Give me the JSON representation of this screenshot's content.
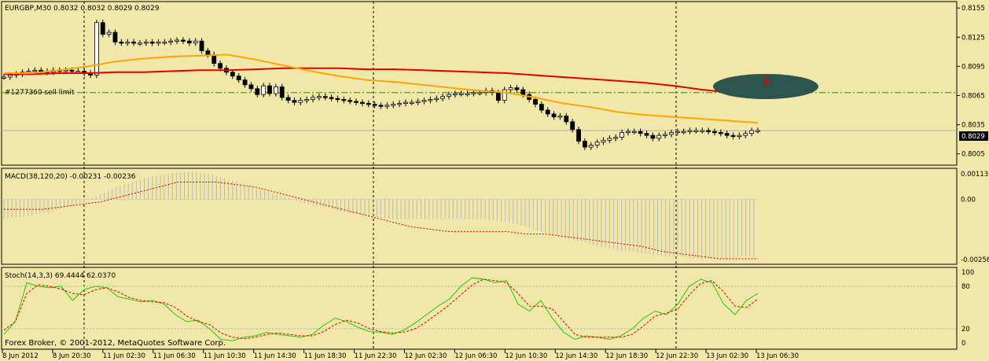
{
  "header": {
    "symbol_label": "EURGBP,M30  0.8032 0.8032 0.8029 0.8029",
    "order_label": "#1277360 sell limit",
    "macd_label": "MACD(38,120,20) -0.00231 -0.00236",
    "stoch_label": "Stoch(14,3,3) 69.4444 62.0370",
    "copyright": "Forex Broker, © 2001-2012, MetaQuotes Software Corp.",
    "current_price": "0.8029",
    "alert_marker": "8"
  },
  "colors": {
    "background": "#f0e7a8",
    "ma_slow": "#e00000",
    "ma_fast": "#ffa500",
    "stoch_main": "#22cc00",
    "stoch_signal": "#e00000",
    "macd_hist": "#b8b8b8",
    "alert_ellipse": "#2e5450"
  },
  "chart_data": [
    {
      "type": "candlestick",
      "title": "EURGBP,M30",
      "ylim": [
        0.7995,
        0.816
      ],
      "y_ticks": [
        "0.8155",
        "0.8125",
        "0.8095",
        "0.8065",
        "0.8035",
        "0.8005"
      ],
      "x_ticks": [
        "8 Jun 2012",
        "8 Jun 20:30",
        "11 Jun 02:30",
        "11 Jun 06:30",
        "11 Jun 10:30",
        "11 Jun 14:30",
        "11 Jun 18:30",
        "11 Jun 22:30",
        "12 Jun 02:30",
        "12 Jun 06:30",
        "12 Jun 10:30",
        "12 Jun 14:30",
        "12 Jun 18:30",
        "12 Jun 22:30",
        "13 Jun 02:30",
        "13 Jun 06:30"
      ],
      "close_series": [
        0.8084,
        0.8086,
        0.8087,
        0.8089,
        0.809,
        0.8091,
        0.809,
        0.8089,
        0.8091,
        0.809,
        0.8091,
        0.809,
        0.809,
        0.8088,
        0.8086,
        0.814,
        0.8128,
        0.813,
        0.812,
        0.8119,
        0.812,
        0.8119,
        0.8119,
        0.812,
        0.8119,
        0.812,
        0.812,
        0.8121,
        0.8122,
        0.8121,
        0.8119,
        0.8121,
        0.8111,
        0.8107,
        0.8098,
        0.8093,
        0.8089,
        0.8085,
        0.8081,
        0.8076,
        0.8072,
        0.8066,
        0.8075,
        0.8067,
        0.8074,
        0.8063,
        0.806,
        0.8058,
        0.806,
        0.8061,
        0.8063,
        0.8064,
        0.8063,
        0.8062,
        0.8061,
        0.806,
        0.8059,
        0.8058,
        0.8057,
        0.8056,
        0.8055,
        0.8054,
        0.8055,
        0.8056,
        0.8057,
        0.8058,
        0.8058,
        0.8059,
        0.806,
        0.8061,
        0.8062,
        0.8064,
        0.8066,
        0.8067,
        0.8067,
        0.8067,
        0.8068,
        0.8068,
        0.807,
        0.8068,
        0.806,
        0.8071,
        0.8073,
        0.8071,
        0.8066,
        0.8061,
        0.8056,
        0.805,
        0.8046,
        0.8043,
        0.8044,
        0.8038,
        0.803,
        0.8018,
        0.8012,
        0.8014,
        0.8017,
        0.8019,
        0.8021,
        0.8022,
        0.8027,
        0.8028,
        0.8028,
        0.8026,
        0.8024,
        0.8021,
        0.8024,
        0.8025,
        0.8027,
        0.8028,
        0.8028,
        0.8029,
        0.8029,
        0.8029,
        0.8028,
        0.8027,
        0.8026,
        0.8024,
        0.8023,
        0.8024,
        0.8026,
        0.8029,
        0.8029
      ],
      "ma_slow": [
        0.8087,
        0.8087,
        0.8088,
        0.8088,
        0.8089,
        0.8089,
        0.809,
        0.8091,
        0.8091,
        0.8092,
        0.8093,
        0.8093,
        0.8093,
        0.8092,
        0.8092,
        0.8091,
        0.809,
        0.8089,
        0.8088,
        0.8086,
        0.8084,
        0.8082,
        0.808,
        0.8078,
        0.8075,
        0.8071,
        0.8068,
        0.8068
      ],
      "ma_fast": [
        0.8088,
        0.8088,
        0.8091,
        0.8095,
        0.81,
        0.8103,
        0.8105,
        0.8106,
        0.8107,
        0.8102,
        0.8096,
        0.809,
        0.8085,
        0.8081,
        0.8079,
        0.8076,
        0.8073,
        0.807,
        0.8068,
        0.8063,
        0.8057,
        0.8053,
        0.8048,
        0.8045,
        0.8043,
        0.8041,
        0.8039,
        0.8037
      ],
      "order_level": 0.8068,
      "current_price": 0.8029
    },
    {
      "type": "bar",
      "title": "MACD(38,120,20)",
      "ylim": [
        -0.00256,
        0.00113
      ],
      "y_ticks": [
        "0.00113",
        "0.00",
        "-0.00256"
      ],
      "macd_hist": [
        -0.0008,
        -0.0007,
        -0.0006,
        -0.0005,
        -0.0003,
        -0.0001,
        0.0002,
        0.0005,
        0.0007,
        0.0009,
        0.001,
        0.0011,
        0.0011,
        0.001,
        0.0008,
        0.0006,
        0.0004,
        0.0002,
        0.0,
        -0.0002,
        -0.0003,
        -0.0005,
        -0.0006,
        -0.0007,
        -0.0008,
        -0.0008,
        -0.0008,
        -0.0008,
        -0.0008,
        -0.0008,
        -0.0008,
        -0.0009,
        -0.001,
        -0.0012,
        -0.0014,
        -0.0016,
        -0.0017,
        -0.0019,
        -0.002,
        -0.0021,
        -0.0022,
        -0.0023,
        -0.0023,
        -0.0024,
        -0.0024,
        -0.0024,
        -0.0023,
        -0.0023
      ],
      "macd_signal": [
        -0.0004,
        -0.0004,
        -0.0004,
        -0.0003,
        -0.0002,
        -0.0001,
        0.0001,
        0.0003,
        0.0005,
        0.0007,
        0.0007,
        0.0007,
        0.0006,
        0.0005,
        0.0003,
        0.0001,
        -0.0001,
        -0.0003,
        -0.0005,
        -0.0007,
        -0.0009,
        -0.0011,
        -0.0012,
        -0.0013,
        -0.0013,
        -0.0013,
        -0.0013,
        -0.0014,
        -0.0014,
        -0.0015,
        -0.0016,
        -0.0017,
        -0.0018,
        -0.0019,
        -0.0021,
        -0.0022,
        -0.0023,
        -0.0024,
        -0.0024,
        -0.0024
      ]
    },
    {
      "type": "line",
      "title": "Stoch(14,3,3)",
      "ylim": [
        0,
        100
      ],
      "y_ticks": [
        "100",
        "80",
        "20",
        "0"
      ],
      "levels": [
        80,
        20
      ],
      "main": [
        12,
        30,
        85,
        80,
        78,
        80,
        60,
        75,
        80,
        78,
        65,
        62,
        58,
        60,
        55,
        40,
        30,
        32,
        20,
        5,
        3,
        8,
        10,
        15,
        12,
        10,
        8,
        12,
        25,
        35,
        30,
        22,
        16,
        15,
        12,
        18,
        28,
        40,
        52,
        62,
        80,
        92,
        90,
        85,
        88,
        55,
        45,
        60,
        35,
        15,
        5,
        10,
        8,
        5,
        10,
        20,
        35,
        45,
        40,
        55,
        80,
        90,
        85,
        55,
        40,
        60,
        70
      ],
      "signal": [
        18,
        30,
        70,
        82,
        80,
        76,
        70,
        68,
        75,
        78,
        72,
        64,
        60,
        58,
        57,
        50,
        38,
        30,
        26,
        14,
        8,
        6,
        8,
        12,
        14,
        12,
        10,
        10,
        16,
        26,
        32,
        28,
        20,
        16,
        14,
        15,
        20,
        30,
        42,
        54,
        68,
        82,
        90,
        88,
        85,
        70,
        52,
        52,
        48,
        30,
        12,
        8,
        8,
        8,
        8,
        12,
        24,
        38,
        42,
        48,
        68,
        84,
        88,
        72,
        52,
        50,
        62
      ]
    }
  ]
}
